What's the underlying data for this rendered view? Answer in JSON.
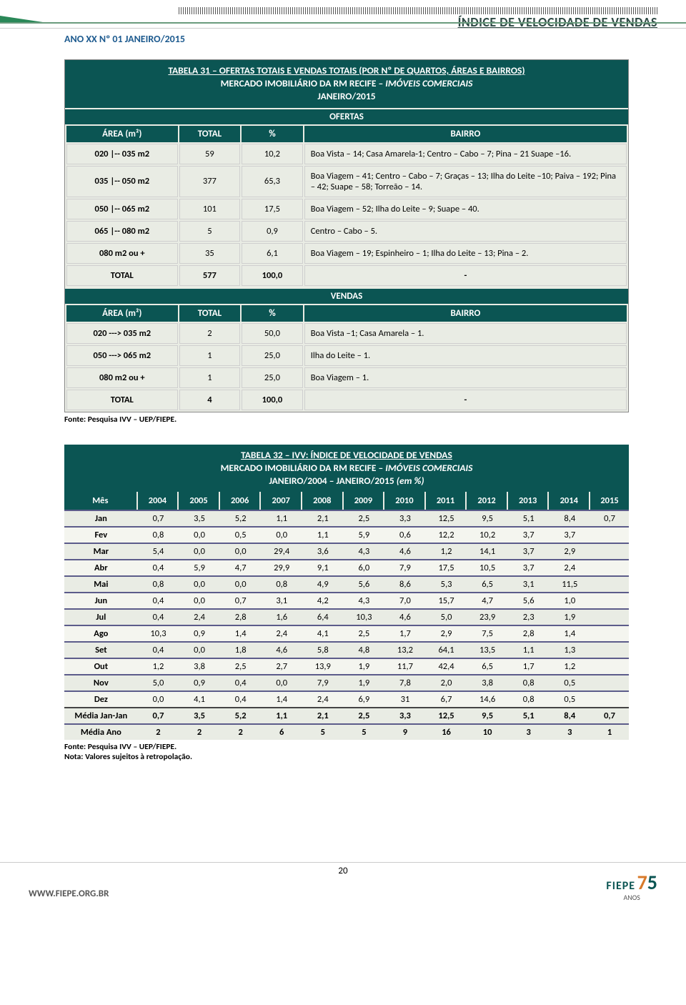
{
  "header": {
    "title": "ÍNDICE DE VELOCIDADE DE VENDAS",
    "meta": "ANO XX Nº 01 JANEIRO/2015"
  },
  "table31": {
    "title_line1": "TABELA 31 – OFERTAS TOTAIS E VENDAS TOTAIS (POR Nº DE QUARTOS, ÁREAS E BAIRROS)",
    "title_line2": "MERCADO IMOBILIÁRIO DA RM RECIFE – ",
    "title_line2_i": "IMÓVEIS COMERCIAIS",
    "title_line3": "JANEIRO/2015",
    "section_ofertas": "OFERTAS",
    "section_vendas": "VENDAS",
    "cols": {
      "area": "ÁREA (m²)",
      "total": "TOTAL",
      "pct": "%",
      "bairro": "BAIRRO"
    },
    "ofertas_rows": [
      {
        "area": "020 |-- 035 m2",
        "total": "59",
        "pct": "10,2",
        "bairro": "Boa Vista – 14; Casa Amarela-1; Centro – Cabo – 7; Pina – 21 Suape –16."
      },
      {
        "area": "035 |-- 050 m2",
        "total": "377",
        "pct": "65,3",
        "bairro": "Boa Viagem – 41; Centro – Cabo – 7; Graças – 13; Ilha do Leite –10; Paiva – 192; Pina – 42; Suape – 58; Torreão – 14."
      },
      {
        "area": "050 |-- 065 m2",
        "total": "101",
        "pct": "17,5",
        "bairro": "Boa Viagem – 52; Ilha do Leite – 9; Suape – 40."
      },
      {
        "area": "065 |-- 080 m2",
        "total": "5",
        "pct": "0,9",
        "bairro": "Centro – Cabo – 5."
      },
      {
        "area": "080 m2 ou +",
        "total": "35",
        "pct": "6,1",
        "bairro": "Boa Viagem – 19; Espinheiro – 1; Ilha do Leite – 13; Pina – 2."
      }
    ],
    "ofertas_total": {
      "area": "TOTAL",
      "total": "577",
      "pct": "100,0",
      "bairro": "-"
    },
    "vendas_rows": [
      {
        "area": "020 ---> 035 m2",
        "total": "2",
        "pct": "50,0",
        "bairro": "Boa Vista –1; Casa Amarela – 1."
      },
      {
        "area": "050 ---> 065 m2",
        "total": "1",
        "pct": "25,0",
        "bairro": "Ilha do Leite – 1."
      },
      {
        "area": "080 m2 ou +",
        "total": "1",
        "pct": "25,0",
        "bairro": "Boa Viagem – 1."
      }
    ],
    "vendas_total": {
      "area": "TOTAL",
      "total": "4",
      "pct": "100,0",
      "bairro": "-"
    },
    "source": "Fonte: Pesquisa IVV – UEP/FIEPE."
  },
  "table32": {
    "title_line1": "TABELA 32 – IVV: ÍNDICE DE VELOCIDADE DE VENDAS",
    "title_line2": "MERCADO IMOBILIÁRIO DA RM RECIFE – ",
    "title_line2_i": "IMÓVEIS COMERCIAIS",
    "title_line3_a": "JANEIRO/2004 – JANEIRO/2015 ",
    "title_line3_b": "(em %)",
    "col_mes": "Mês",
    "years": [
      "2004",
      "2005",
      "2006",
      "2007",
      "2008",
      "2009",
      "2010",
      "2011",
      "2012",
      "2013",
      "2014",
      "2015"
    ],
    "rows": [
      {
        "m": "Jan",
        "v": [
          "0,7",
          "3,5",
          "5,2",
          "1,1",
          "2,1",
          "2,5",
          "3,3",
          "12,5",
          "9,5",
          "5,1",
          "8,4",
          "0,7"
        ]
      },
      {
        "m": "Fev",
        "v": [
          "0,8",
          "0,0",
          "0,5",
          "0,0",
          "1,1",
          "5,9",
          "0,6",
          "12,2",
          "10,2",
          "3,7",
          "3,7",
          ""
        ]
      },
      {
        "m": "Mar",
        "v": [
          "5,4",
          "0,0",
          "0,0",
          "29,4",
          "3,6",
          "4,3",
          "4,6",
          "1,2",
          "14,1",
          "3,7",
          "2,9",
          ""
        ]
      },
      {
        "m": "Abr",
        "v": [
          "0,4",
          "5,9",
          "4,7",
          "29,9",
          "9,1",
          "6,0",
          "7,9",
          "17,5",
          "10,5",
          "3,7",
          "2,4",
          ""
        ]
      },
      {
        "m": "Mai",
        "v": [
          "0,8",
          "0,0",
          "0,0",
          "0,8",
          "4,9",
          "5,6",
          "8,6",
          "5,3",
          "6,5",
          "3,1",
          "11,5",
          ""
        ]
      },
      {
        "m": "Jun",
        "v": [
          "0,4",
          "0,0",
          "0,7",
          "3,1",
          "4,2",
          "4,3",
          "7,0",
          "15,7",
          "4,7",
          "5,6",
          "1,0",
          ""
        ]
      },
      {
        "m": "Jul",
        "v": [
          "0,4",
          "2,4",
          "2,8",
          "1,6",
          "6,4",
          "10,3",
          "4,6",
          "5,0",
          "23,9",
          "2,3",
          "1,9",
          ""
        ]
      },
      {
        "m": "Ago",
        "v": [
          "10,3",
          "0,9",
          "1,4",
          "2,4",
          "4,1",
          "2,5",
          "1,7",
          "2,9",
          "7,5",
          "2,8",
          "1,4",
          ""
        ]
      },
      {
        "m": "Set",
        "v": [
          "0,4",
          "0,0",
          "1,8",
          "4,6",
          "5,8",
          "4,8",
          "13,2",
          "64,1",
          "13,5",
          "1,1",
          "1,3",
          ""
        ]
      },
      {
        "m": "Out",
        "v": [
          "1,2",
          "3,8",
          "2,5",
          "2,7",
          "13,9",
          "1,9",
          "11,7",
          "42,4",
          "6,5",
          "1,7",
          "1,2",
          ""
        ]
      },
      {
        "m": "Nov",
        "v": [
          "5,0",
          "0,9",
          "0,4",
          "0,0",
          "7,9",
          "1,9",
          "7,8",
          "2,0",
          "3,8",
          "0,8",
          "0,5",
          ""
        ]
      },
      {
        "m": "Dez",
        "v": [
          "0,0",
          "4,1",
          "0,4",
          "1,4",
          "2,4",
          "6,9",
          "31",
          "6,7",
          "14,6",
          "0,8",
          "0,5",
          ""
        ]
      }
    ],
    "avg1": {
      "m": "Média Jan-Jan",
      "v": [
        "0,7",
        "3,5",
        "5,2",
        "1,1",
        "2,1",
        "2,5",
        "3,3",
        "12,5",
        "9,5",
        "5,1",
        "8,4",
        "0,7"
      ]
    },
    "avg2": {
      "m": "Média Ano",
      "v": [
        "2",
        "2",
        "2",
        "6",
        "5",
        "5",
        "9",
        "16",
        "10",
        "3",
        "3",
        "1"
      ]
    },
    "source1": "Fonte: Pesquisa IVV – UEP/FIEPE.",
    "source2": "Nota: Valores sujeitos à retropolação."
  },
  "footer": {
    "page": "20",
    "url": "WWW.FIEPE.ORG.BR",
    "brand": "FIEPE",
    "num7": "7",
    "anos": "ANOS"
  },
  "colors": {
    "header_green": "#0b5553",
    "row_bg": "#e9ece4",
    "row_border": "#5c5c8a"
  }
}
